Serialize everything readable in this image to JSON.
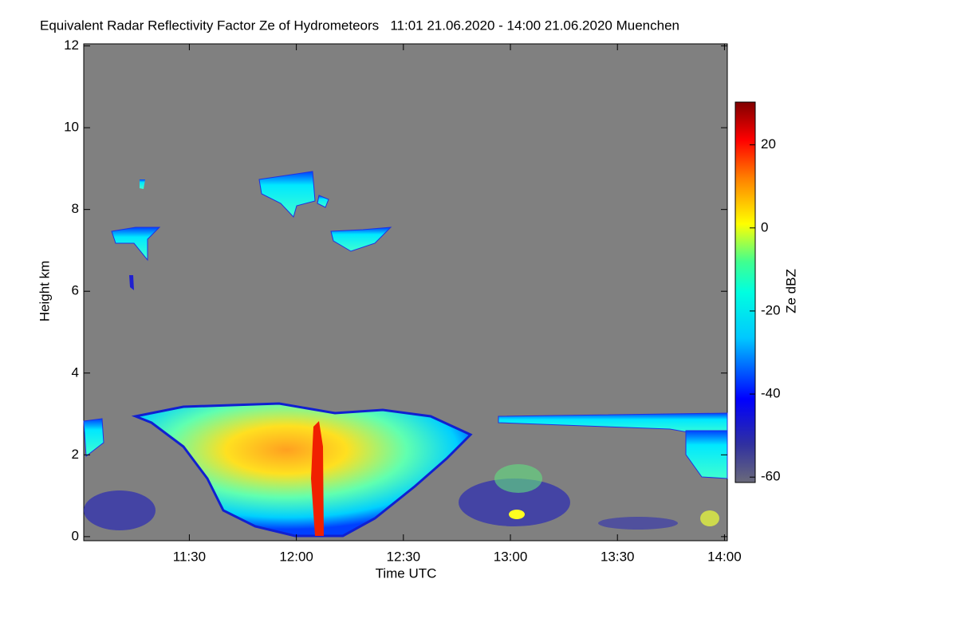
{
  "chart_data": {
    "type": "heatmap",
    "title": "Equivalent Radar Reflectivity Factor Ze of Hydrometeors   11:01 21.06.2020 - 14:00 21.06.2020 Muenchen",
    "x_label": "Time UTC",
    "y_label": "Height km",
    "colorbar_label": "Ze dBZ",
    "xlim": [
      660.4,
      840.8
    ],
    "xticks": [
      {
        "value": 690,
        "label": "11:30"
      },
      {
        "value": 720,
        "label": "12:00"
      },
      {
        "value": 750,
        "label": "12:30"
      },
      {
        "value": 780,
        "label": "13:00"
      },
      {
        "value": 810,
        "label": "13:30"
      },
      {
        "value": 840,
        "label": "14:00"
      }
    ],
    "ylim": [
      -0.1,
      12.05
    ],
    "yticks": [
      0,
      2,
      4,
      6,
      8,
      10,
      12
    ],
    "clim": [
      -61.3,
      30.3
    ],
    "cticks": [
      -60,
      -40,
      -20,
      0,
      20
    ]
  }
}
